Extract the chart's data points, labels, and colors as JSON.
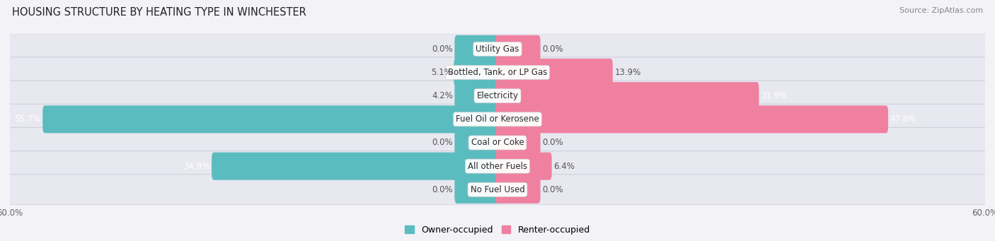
{
  "title": "HOUSING STRUCTURE BY HEATING TYPE IN WINCHESTER",
  "source": "Source: ZipAtlas.com",
  "categories": [
    "Utility Gas",
    "Bottled, Tank, or LP Gas",
    "Electricity",
    "Fuel Oil or Kerosene",
    "Coal or Coke",
    "All other Fuels",
    "No Fuel Used"
  ],
  "owner_values": [
    0.0,
    5.1,
    4.2,
    55.7,
    0.0,
    34.9,
    0.0
  ],
  "renter_values": [
    0.0,
    13.9,
    31.9,
    47.8,
    0.0,
    6.4,
    0.0
  ],
  "owner_color": "#5bbcbf",
  "renter_color": "#f080a0",
  "owner_label": "Owner-occupied",
  "renter_label": "Renter-occupied",
  "axis_max": 60.0,
  "background_color": "#f2f2f7",
  "row_bg_color": "#e8e8f0",
  "row_border_color": "#d0d0dc",
  "title_fontsize": 10.5,
  "source_fontsize": 8,
  "label_fontsize": 8.5,
  "category_fontsize": 8.5,
  "stub_size": 5.0
}
